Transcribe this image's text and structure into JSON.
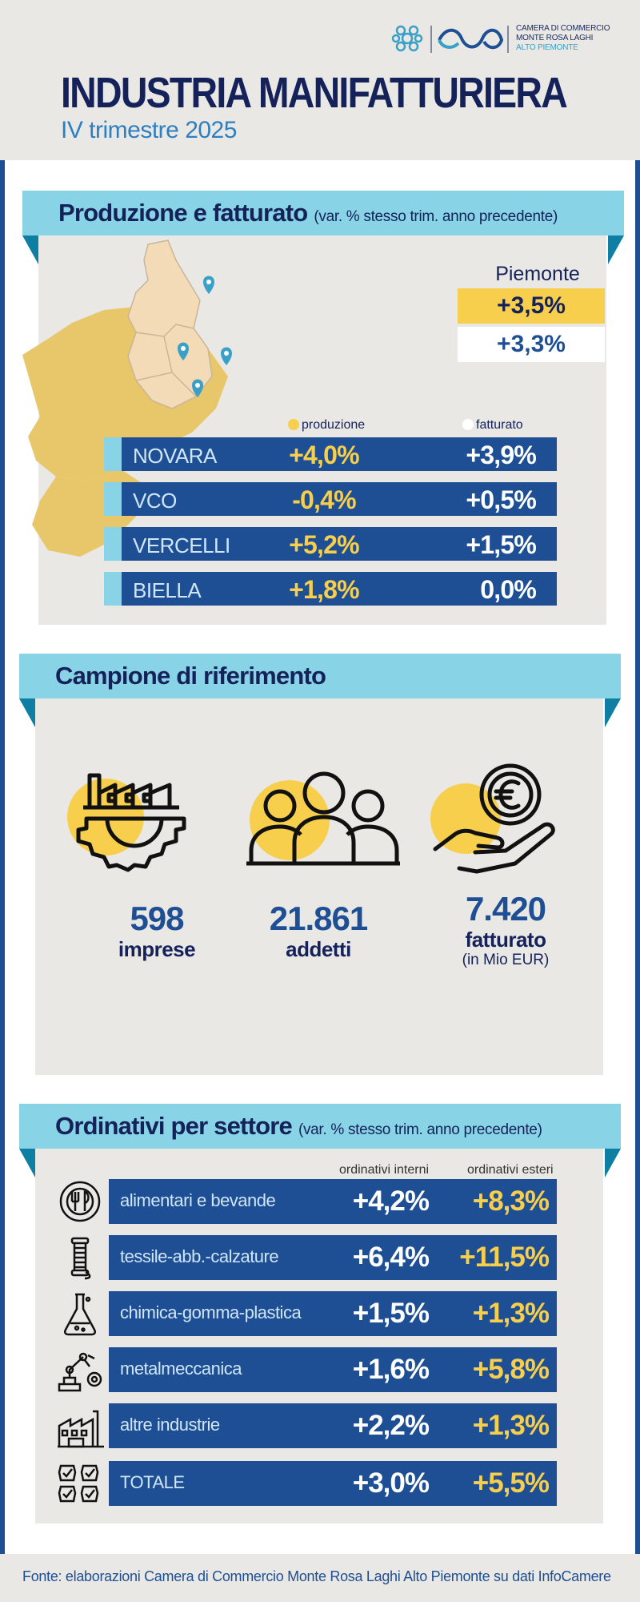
{
  "header": {
    "title": "INDUSTRIA MANIFATTURIERA",
    "subtitle": "IV trimestre 2025",
    "logo_line1": "CAMERA DI COMMERCIO",
    "logo_line2": "MONTE ROSA LAGHI",
    "logo_line3": "ALTO PIEMONTE"
  },
  "production": {
    "title": "Produzione e fatturato",
    "note": "(var. % stesso trim. anno precedente)",
    "region_label": "Piemonte",
    "region_production": "+3,5%",
    "region_turnover": "+3,3%",
    "legend_production": "produzione",
    "legend_turnover": "fatturato",
    "provinces": [
      {
        "name": "NOVARA",
        "production": "+4,0%",
        "turnover": "+3,9%"
      },
      {
        "name": "VCO",
        "production": "-0,4%",
        "turnover": "+0,5%"
      },
      {
        "name": "VERCELLI",
        "production": "+5,2%",
        "turnover": "+1,5%"
      },
      {
        "name": "BIELLA",
        "production": "+1,8%",
        "turnover": "0,0%"
      }
    ]
  },
  "sample": {
    "title": "Campione di riferimento",
    "companies_value": "598",
    "companies_label": "imprese",
    "employees_value": "21.861",
    "employees_label": "addetti",
    "turnover_value": "7.420",
    "turnover_label": "fatturato",
    "turnover_note": "(in Mio EUR)"
  },
  "orders": {
    "title": "Ordinativi per settore",
    "note": "(var. % stesso trim. anno precedente)",
    "col_internal": "ordinativi interni",
    "col_external": "ordinativi esteri",
    "sectors": [
      {
        "name": "alimentari e bevande",
        "internal": "+4,2%",
        "external": "+8,3%",
        "icon": "food-plate-icon"
      },
      {
        "name": "tessile-abb.-calzature",
        "internal": "+6,4%",
        "external": "+11,5%",
        "icon": "thread-spool-icon"
      },
      {
        "name": "chimica-gomma-plastica",
        "internal": "+1,5%",
        "external": "+1,3%",
        "icon": "flask-icon"
      },
      {
        "name": "metalmeccanica",
        "internal": "+1,6%",
        "external": "+5,8%",
        "icon": "robot-arm-icon"
      },
      {
        "name": "altre industrie",
        "internal": "+2,2%",
        "external": "+1,3%",
        "icon": "factory-icon"
      },
      {
        "name": "TOTALE",
        "internal": "+3,0%",
        "external": "+5,5%",
        "icon": "checklist-icon"
      }
    ]
  },
  "colors": {
    "navy": "#15225a",
    "blue": "#1e4f94",
    "light_blue": "#88d3e6",
    "yellow": "#f7cf4c",
    "panel_gray": "#e9e8e5"
  },
  "footer": {
    "source": "Fonte: elaborazioni Camera di Commercio Monte Rosa Laghi Alto Piemonte su dati InfoCamere"
  }
}
